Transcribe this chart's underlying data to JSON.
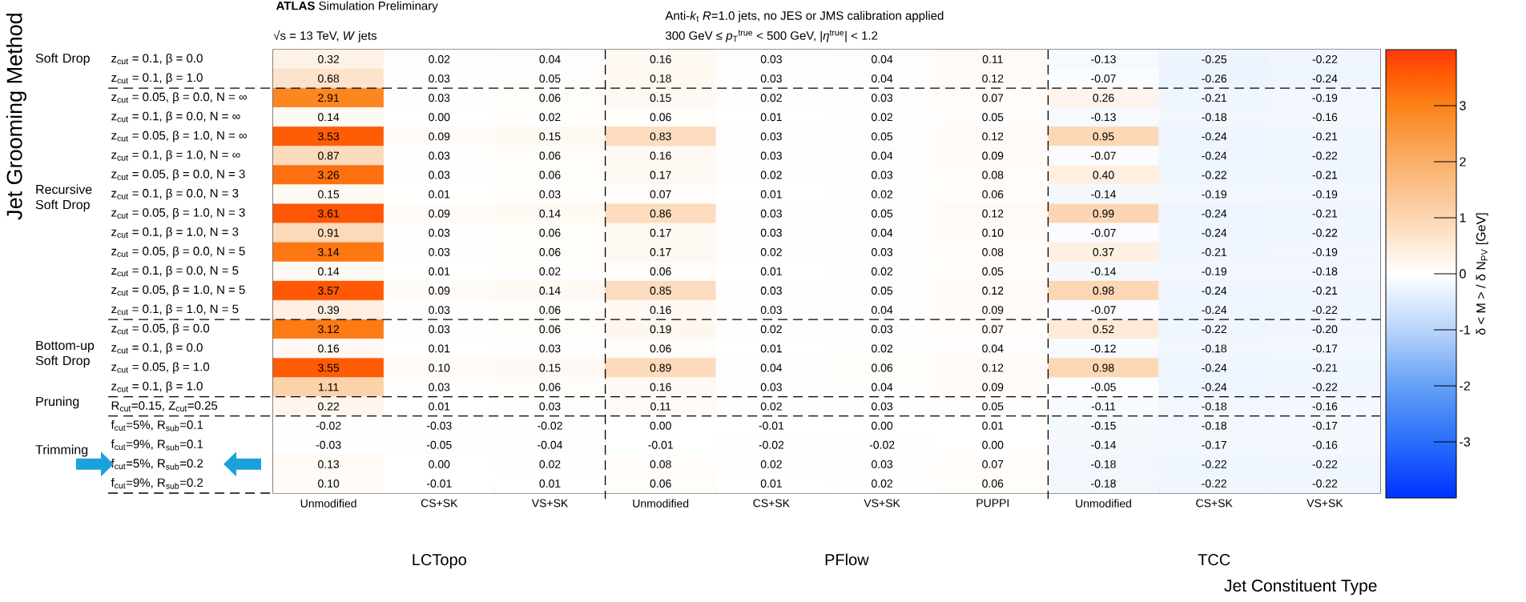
{
  "chart_data": {
    "type": "heatmap",
    "title": "**ATLAS** Simulation Preliminary",
    "subtitle": "√s = 13 TeV, *W* jets",
    "xlabel": "Jet Constituent Type",
    "ylabel": "Jet Grooming Method",
    "clabel": "δ < M > / δ N$_{PV}$ [GeV]",
    "annotations": [
      "Anti-*k*$_{t}$ *R*=1.0 jets, no JES or JMS calibration applied",
      "300 GeV ≤ *p*$_{T}$$^{true}$ < 500 GeV, |*η*$^{true}$| < 1.2",
      "Soft Drop",
      "Recursive Soft Drop",
      "Bottom-up Soft Drop",
      "Pruning",
      "Trimming",
      "LCTopo",
      "PFlow",
      "TCC"
    ],
    "categories": [
      "Unmodified",
      "CS+SK",
      "VS+SK",
      "Unmodified",
      "CS+SK",
      "VS+SK",
      "PUPPI",
      "Unmodified",
      "CS+SK",
      "VS+SK"
    ],
    "y_categories": [
      "z$_{cut}$ = 0.1, β = 0.0",
      "z$_{cut}$ = 0.1, β = 1.0",
      "z$_{cut}$ = 0.05, β = 0.0, N = ∞",
      "z$_{cut}$ = 0.1, β = 0.0, N = ∞",
      "z$_{cut}$ = 0.05, β = 1.0, N = ∞",
      "z$_{cut}$ = 0.1, β = 1.0, N = ∞",
      "z$_{cut}$ = 0.05, β = 0.0, N = 3",
      "z$_{cut}$ = 0.1, β = 0.0, N = 3",
      "z$_{cut}$ = 0.05, β = 1.0, N = 3",
      "z$_{cut}$ = 0.1, β = 1.0, N = 3",
      "z$_{cut}$ = 0.05, β = 0.0, N = 5",
      "z$_{cut}$ = 0.1, β = 0.0, N = 5",
      "z$_{cut}$ = 0.05, β = 1.0, N = 5",
      "z$_{cut}$ = 0.1, β = 1.0, N = 5",
      "z$_{cut}$ = 0.05, β = 0.0",
      "z$_{cut}$ = 0.1, β = 0.0",
      "z$_{cut}$ = 0.05, β = 1.0",
      "z$_{cut}$ = 0.1, β = 1.0",
      "R$_{cut}$=0.15, Z$_{cut}$=0.25",
      "f$_{cut}$=5%, R$_{sub}$=0.1",
      "f$_{cut}$=9%, R$_{sub}$=0.1",
      "f$_{cut}$=5%, R$_{sub}$=0.2",
      "f$_{cut}$=9%, R$_{sub}$=0.2"
    ],
    "cells": [
      [
        0.32,
        0.02,
        0.04,
        0.16,
        0.03,
        0.04,
        0.11,
        -0.13,
        -0.25,
        -0.22
      ],
      [
        0.68,
        0.03,
        0.05,
        0.18,
        0.03,
        0.04,
        0.12,
        -0.07,
        -0.26,
        -0.24
      ],
      [
        2.91,
        0.03,
        0.06,
        0.15,
        0.02,
        0.03,
        0.07,
        0.26,
        -0.21,
        -0.19
      ],
      [
        0.14,
        0.0,
        0.02,
        0.06,
        0.01,
        0.02,
        0.05,
        -0.13,
        -0.18,
        -0.16
      ],
      [
        3.53,
        0.09,
        0.15,
        0.83,
        0.03,
        0.05,
        0.12,
        0.95,
        -0.24,
        -0.21
      ],
      [
        0.87,
        0.03,
        0.06,
        0.16,
        0.03,
        0.04,
        0.09,
        -0.07,
        -0.24,
        -0.22
      ],
      [
        3.26,
        0.03,
        0.06,
        0.17,
        0.02,
        0.03,
        0.08,
        0.4,
        -0.22,
        -0.21
      ],
      [
        0.15,
        0.01,
        0.03,
        0.07,
        0.01,
        0.02,
        0.06,
        -0.14,
        -0.19,
        -0.19
      ],
      [
        3.61,
        0.09,
        0.14,
        0.86,
        0.03,
        0.05,
        0.12,
        0.99,
        -0.24,
        -0.21
      ],
      [
        0.91,
        0.03,
        0.06,
        0.17,
        0.03,
        0.04,
        0.1,
        -0.07,
        -0.24,
        -0.22
      ],
      [
        3.14,
        0.03,
        0.06,
        0.17,
        0.02,
        0.03,
        0.08,
        0.37,
        -0.21,
        -0.19
      ],
      [
        0.14,
        0.01,
        0.02,
        0.06,
        0.01,
        0.02,
        0.05,
        -0.14,
        -0.19,
        -0.18
      ],
      [
        3.57,
        0.09,
        0.14,
        0.85,
        0.03,
        0.05,
        0.12,
        0.98,
        -0.24,
        -0.21
      ],
      [
        0.39,
        0.03,
        0.06,
        0.16,
        0.03,
        0.04,
        0.09,
        -0.07,
        -0.24,
        -0.22
      ],
      [
        3.12,
        0.03,
        0.06,
        0.19,
        0.02,
        0.03,
        0.07,
        0.52,
        -0.22,
        -0.2
      ],
      [
        0.16,
        0.01,
        0.03,
        0.06,
        0.01,
        0.02,
        0.04,
        -0.12,
        -0.18,
        -0.17
      ],
      [
        3.55,
        0.1,
        0.15,
        0.89,
        0.04,
        0.06,
        0.12,
        0.98,
        -0.24,
        -0.21
      ],
      [
        1.11,
        0.03,
        0.06,
        0.16,
        0.03,
        0.04,
        0.09,
        -0.05,
        -0.24,
        -0.22
      ],
      [
        0.22,
        0.01,
        0.03,
        0.11,
        0.02,
        0.03,
        0.05,
        -0.11,
        -0.18,
        -0.16
      ],
      [
        -0.02,
        -0.03,
        -0.02,
        0.0,
        -0.01,
        0.0,
        0.01,
        -0.15,
        -0.18,
        -0.17
      ],
      [
        -0.03,
        -0.05,
        -0.04,
        -0.01,
        -0.02,
        -0.02,
        0.0,
        -0.14,
        -0.17,
        -0.16
      ],
      [
        0.13,
        0.0,
        0.02,
        0.08,
        0.02,
        0.03,
        0.07,
        -0.18,
        -0.22,
        -0.22
      ],
      [
        0.1,
        -0.01,
        0.01,
        0.06,
        0.01,
        0.02,
        0.06,
        -0.18,
        -0.22,
        -0.22
      ]
    ],
    "cell_labels": [
      [
        "0.32",
        "0.02",
        "0.04",
        "0.16",
        "0.03",
        "0.04",
        "0.11",
        "-0.13",
        "-0.25",
        "-0.22"
      ],
      [
        "0.68",
        "0.03",
        "0.05",
        "0.18",
        "0.03",
        "0.04",
        "0.12",
        "-0.07",
        "-0.26",
        "-0.24"
      ],
      [
        "2.91",
        "0.03",
        "0.06",
        "0.15",
        "0.02",
        "0.03",
        "0.07",
        "0.26",
        "-0.21",
        "-0.19"
      ],
      [
        "0.14",
        "0.00",
        "0.02",
        "0.06",
        "0.01",
        "0.02",
        "0.05",
        "-0.13",
        "-0.18",
        "-0.16"
      ],
      [
        "3.53",
        "0.09",
        "0.15",
        "0.83",
        "0.03",
        "0.05",
        "0.12",
        "0.95",
        "-0.24",
        "-0.21"
      ],
      [
        "0.87",
        "0.03",
        "0.06",
        "0.16",
        "0.03",
        "0.04",
        "0.09",
        "-0.07",
        "-0.24",
        "-0.22"
      ],
      [
        "3.26",
        "0.03",
        "0.06",
        "0.17",
        "0.02",
        "0.03",
        "0.08",
        "0.40",
        "-0.22",
        "-0.21"
      ],
      [
        "0.15",
        "0.01",
        "0.03",
        "0.07",
        "0.01",
        "0.02",
        "0.06",
        "-0.14",
        "-0.19",
        "-0.19"
      ],
      [
        "3.61",
        "0.09",
        "0.14",
        "0.86",
        "0.03",
        "0.05",
        "0.12",
        "0.99",
        "-0.24",
        "-0.21"
      ],
      [
        "0.91",
        "0.03",
        "0.06",
        "0.17",
        "0.03",
        "0.04",
        "0.10",
        "-0.07",
        "-0.24",
        "-0.22"
      ],
      [
        "3.14",
        "0.03",
        "0.06",
        "0.17",
        "0.02",
        "0.03",
        "0.08",
        "0.37",
        "-0.21",
        "-0.19"
      ],
      [
        "0.14",
        "0.01",
        "0.02",
        "0.06",
        "0.01",
        "0.02",
        "0.05",
        "-0.14",
        "-0.19",
        "-0.18"
      ],
      [
        "3.57",
        "0.09",
        "0.14",
        "0.85",
        "0.03",
        "0.05",
        "0.12",
        "0.98",
        "-0.24",
        "-0.21"
      ],
      [
        "0.39",
        "0.03",
        "0.06",
        "0.16",
        "0.03",
        "0.04",
        "0.09",
        "-0.07",
        "-0.24",
        "-0.22"
      ],
      [
        "3.12",
        "0.03",
        "0.06",
        "0.19",
        "0.02",
        "0.03",
        "0.07",
        "0.52",
        "-0.22",
        "-0.20"
      ],
      [
        "0.16",
        "0.01",
        "0.03",
        "0.06",
        "0.01",
        "0.02",
        "0.04",
        "-0.12",
        "-0.18",
        "-0.17"
      ],
      [
        "3.55",
        "0.10",
        "0.15",
        "0.89",
        "0.04",
        "0.06",
        "0.12",
        "0.98",
        "-0.24",
        "-0.21"
      ],
      [
        "1.11",
        "0.03",
        "0.06",
        "0.16",
        "0.03",
        "0.04",
        "0.09",
        "-0.05",
        "-0.24",
        "-0.22"
      ],
      [
        "0.22",
        "0.01",
        "0.03",
        "0.11",
        "0.02",
        "0.03",
        "0.05",
        "-0.11",
        "-0.18",
        "-0.16"
      ],
      [
        "-0.02",
        "-0.03",
        "-0.02",
        "0.00",
        "-0.01",
        "0.00",
        "0.01",
        "-0.15",
        "-0.18",
        "-0.17"
      ],
      [
        "-0.03",
        "-0.05",
        "-0.04",
        "-0.01",
        "-0.02",
        "-0.02",
        "0.00",
        "-0.14",
        "-0.17",
        "-0.16"
      ],
      [
        "0.13",
        "0.00",
        "0.02",
        "0.08",
        "0.02",
        "0.03",
        "0.07",
        "-0.18",
        "-0.22",
        "-0.22"
      ],
      [
        "0.10",
        "-0.01",
        "0.01",
        "0.06",
        "0.01",
        "0.02",
        "0.06",
        "-0.18",
        "-0.22",
        "-0.22"
      ]
    ],
    "clim": [
      -4,
      4
    ],
    "cticks": [
      -3,
      -2,
      -1,
      0,
      1,
      2,
      3
    ]
  }
}
